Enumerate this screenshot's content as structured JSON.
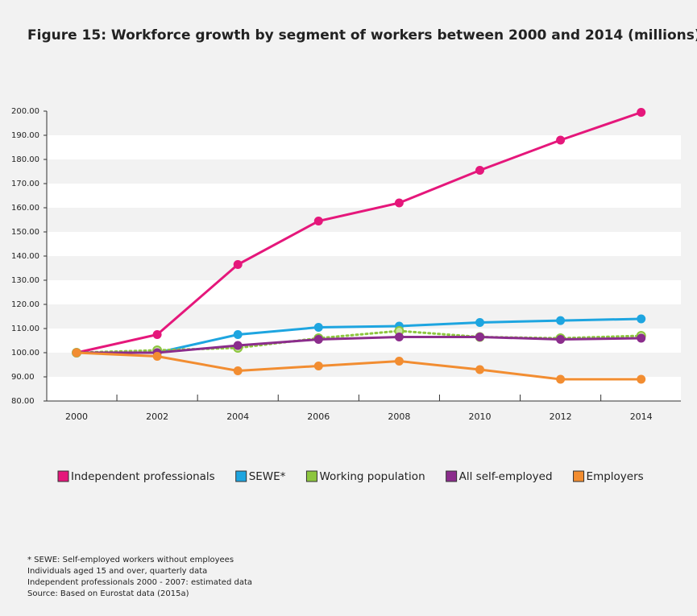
{
  "chart_data": {
    "type": "line",
    "title": "Figure 15: Workforce growth by segment of workers between 2000 and 2014 (millions)",
    "categories": [
      "2000",
      "2002",
      "2004",
      "2006",
      "2008",
      "2010",
      "2012",
      "2014"
    ],
    "series": [
      {
        "name": "Independent professionals",
        "color": "#e5177b",
        "style": "solid",
        "values": [
          100,
          107.5,
          136.5,
          154.5,
          162,
          175.5,
          188,
          199.5
        ]
      },
      {
        "name": "SEWE*",
        "color": "#1ea5e0",
        "style": "solid",
        "values": [
          100,
          100,
          107.5,
          110.5,
          111,
          112.5,
          113.3,
          114
        ]
      },
      {
        "name": "Working population",
        "color": "#8dc63f",
        "style": "dotted",
        "values": [
          100,
          101,
          102,
          106,
          109,
          106.5,
          106,
          107
        ]
      },
      {
        "name": "All self-employed",
        "color": "#8b2d8c",
        "style": "solid",
        "values": [
          100,
          100,
          103,
          105.5,
          106.5,
          106.5,
          105.5,
          106
        ]
      },
      {
        "name": "Employers",
        "color": "#f28d31",
        "style": "solid",
        "values": [
          100,
          98.5,
          92.5,
          94.5,
          96.5,
          93,
          89,
          89
        ]
      }
    ],
    "ylim": [
      80,
      200
    ],
    "yticks": [
      {
        "value": 80,
        "label": "80.00"
      },
      {
        "value": 90,
        "label": "90.00"
      },
      {
        "value": 100,
        "label": "100.00"
      },
      {
        "value": 110,
        "label": "110.00"
      },
      {
        "value": 120,
        "label": "120.00"
      },
      {
        "value": 130,
        "label": "130.00"
      },
      {
        "value": 140,
        "label": "140.00"
      },
      {
        "value": 150,
        "label": "150.00"
      },
      {
        "value": 160,
        "label": "160.00"
      },
      {
        "value": 170,
        "label": "170.00"
      },
      {
        "value": 180,
        "label": "180.00"
      },
      {
        "value": 190,
        "label": "190.00"
      },
      {
        "value": 200,
        "label": "200.00"
      }
    ],
    "banded_grid": true,
    "legend": "bottom",
    "notes": [
      "* SEWE: Self-employed workers without employees",
      "Individuals aged 15 and over, quarterly data",
      "Independent professionals 2000 - 2007: estimated data",
      "Source: Based on Eurostat data (2015a)"
    ]
  }
}
